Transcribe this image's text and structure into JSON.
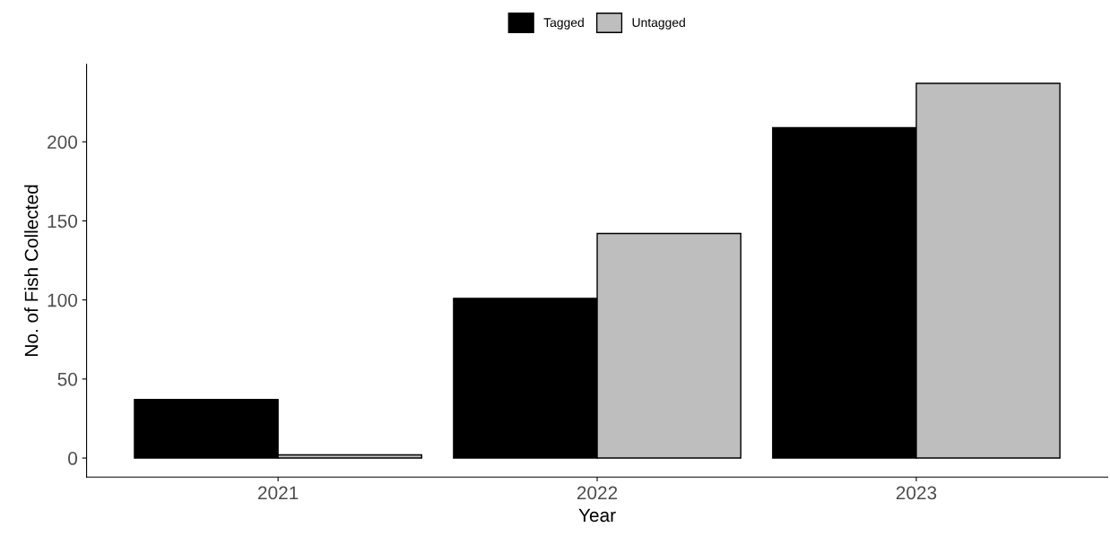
{
  "chart_data": {
    "type": "bar",
    "xlabel": "Year",
    "ylabel": "No. of Fish Collected",
    "categories": [
      "2021",
      "2022",
      "2023"
    ],
    "series": [
      {
        "name": "Tagged",
        "color": "#000000",
        "values": [
          37,
          101,
          209
        ]
      },
      {
        "name": "Untagged",
        "color": "#bebebe",
        "values": [
          2,
          142,
          237
        ]
      }
    ],
    "ylim": [
      -12,
      249
    ],
    "yticks": [
      0,
      50,
      100,
      150,
      200
    ],
    "grid": false,
    "legend": "top"
  }
}
